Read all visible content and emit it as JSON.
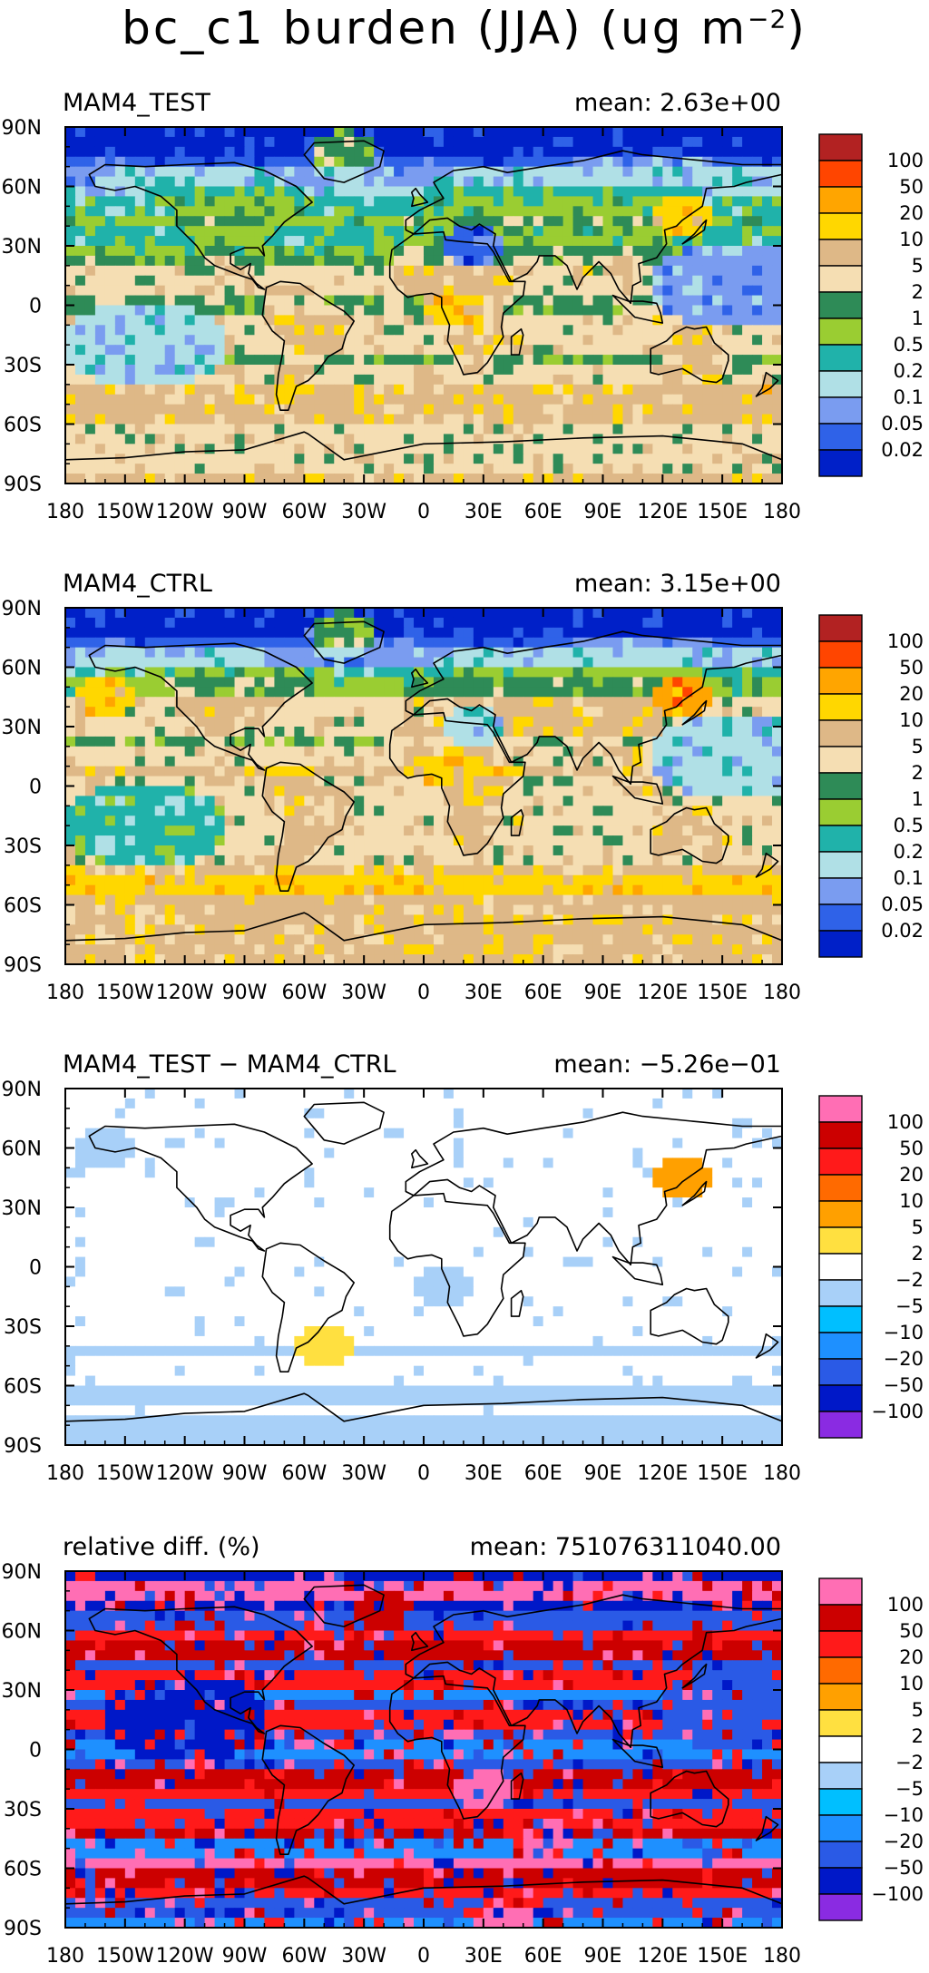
{
  "title": {
    "main": "bc_c1 burden (JJA) (ug m",
    "sup": "−2",
    "close": ")"
  },
  "colors": {
    "seq": [
      "#0020c8",
      "#2f62e8",
      "#7a9cf0",
      "#b0e0e6",
      "#20b2aa",
      "#9acd32",
      "#2e8b57",
      "#f5deb3",
      "#deb887",
      "#ffd700",
      "#ffa500",
      "#ff4500",
      "#b22222"
    ],
    "div": [
      "#8a2be2",
      "#0018c8",
      "#2a5ae6",
      "#1e90ff",
      "#00bfff",
      "#a8d0f8",
      "#ffffff",
      "#ffe040",
      "#ffa000",
      "#ff6a00",
      "#ff1a1a",
      "#cc0000",
      "#ff6eb4"
    ]
  },
  "chart_data": [
    {
      "type": "heatmap",
      "panel": "MAM4_TEST",
      "title": "MAM4_TEST",
      "mean_label": "mean: 2.63e+00",
      "xlabel": "",
      "ylabel": "",
      "xticks": [
        "180",
        "150W",
        "120W",
        "90W",
        "60W",
        "30W",
        "0",
        "30E",
        "60E",
        "90E",
        "120E",
        "150E",
        "180"
      ],
      "yticks": [
        "90N",
        "60N",
        "30N",
        "0",
        "30S",
        "60S",
        "90S"
      ],
      "xlim": [
        -180,
        180
      ],
      "ylim": [
        -90,
        90
      ],
      "colorbar_levels": [
        "0.02",
        "0.05",
        "0.1",
        "0.2",
        "0.5",
        "1",
        "2",
        "5",
        "10",
        "20",
        "50",
        "100"
      ],
      "palette": "seq",
      "band_profile": [
        0,
        0,
        1,
        2,
        3,
        4,
        5,
        4,
        5,
        6,
        7,
        7,
        6,
        7,
        7,
        7,
        6,
        7,
        8,
        8,
        8,
        7,
        7,
        7,
        8
      ],
      "land_shift": 1,
      "hotspots": [
        {
          "lon": 15,
          "lat": -2,
          "cls": 9,
          "label": "central Africa"
        },
        {
          "lon": 130,
          "lat": 45,
          "cls": 9,
          "label": "East Asia"
        },
        {
          "lon": 25,
          "lat": 30,
          "cls": 1,
          "label": "Mediterranean low"
        },
        {
          "lon": -40,
          "lat": 78,
          "cls": 6,
          "label": "Greenland"
        }
      ],
      "oceans": [
        {
          "lon": -140,
          "lat": -20,
          "cls": 3
        },
        {
          "lon": 155,
          "lat": 10,
          "cls": 2
        }
      ]
    },
    {
      "type": "heatmap",
      "panel": "MAM4_CTRL",
      "title": "MAM4_CTRL",
      "mean_label": "mean: 3.15e+00",
      "xlabel": "",
      "ylabel": "",
      "xticks": [
        "180",
        "150W",
        "120W",
        "90W",
        "60W",
        "30W",
        "0",
        "30E",
        "60E",
        "90E",
        "120E",
        "150E",
        "180"
      ],
      "yticks": [
        "90N",
        "60N",
        "30N",
        "0",
        "30S",
        "60S",
        "90S"
      ],
      "xlim": [
        -180,
        180
      ],
      "ylim": [
        -90,
        90
      ],
      "colorbar_levels": [
        "0.02",
        "0.05",
        "0.1",
        "0.2",
        "0.5",
        "1",
        "2",
        "5",
        "10",
        "20",
        "50",
        "100"
      ],
      "palette": "seq",
      "band_profile": [
        0,
        0,
        1,
        2,
        4,
        5,
        7,
        7,
        7,
        6,
        7,
        8,
        7,
        7,
        7,
        7,
        7,
        7,
        8,
        9,
        8,
        8,
        8,
        8,
        8
      ],
      "land_shift": 1,
      "hotspots": [
        {
          "lon": 15,
          "lat": 8,
          "cls": 9,
          "label": "central Africa"
        },
        {
          "lon": 130,
          "lat": 45,
          "cls": 10,
          "label": "East Asia"
        },
        {
          "lon": -160,
          "lat": 45,
          "cls": 9,
          "label": "North Pacific"
        },
        {
          "lon": 25,
          "lat": 30,
          "cls": 3,
          "label": "Mediterranean low"
        },
        {
          "lon": -40,
          "lat": 78,
          "cls": 6,
          "label": "Greenland"
        }
      ],
      "oceans": [
        {
          "lon": -140,
          "lat": -20,
          "cls": 4
        },
        {
          "lon": 155,
          "lat": 15,
          "cls": 3
        }
      ]
    },
    {
      "type": "heatmap",
      "panel": "MAM4_TEST - MAM4_CTRL",
      "title": "MAM4_TEST − MAM4_CTRL",
      "mean_label": "mean: −5.26e−01",
      "xlabel": "",
      "ylabel": "",
      "xticks": [
        "180",
        "150W",
        "120W",
        "90W",
        "60W",
        "30W",
        "0",
        "30E",
        "60E",
        "90E",
        "120E",
        "150E",
        "180"
      ],
      "yticks": [
        "90N",
        "60N",
        "30N",
        "0",
        "30S",
        "60S",
        "90S"
      ],
      "xlim": [
        -180,
        180
      ],
      "ylim": [
        -90,
        90
      ],
      "colorbar_levels": [
        "−100",
        "−50",
        "−20",
        "−10",
        "−5",
        "−2",
        "2",
        "5",
        "10",
        "20",
        "50",
        "100"
      ],
      "palette": "div",
      "band_profile": [
        6,
        6,
        6,
        6,
        6,
        6,
        6,
        6,
        6,
        6,
        6,
        6,
        6,
        6,
        6,
        6,
        6,
        6,
        5,
        6,
        6,
        5,
        6,
        5,
        5
      ],
      "land_shift": 0,
      "hotspots": [
        {
          "lon": -160,
          "lat": 60,
          "cls": 5,
          "label": "Arctic band"
        },
        {
          "lon": 10,
          "lat": -10,
          "cls": 5,
          "label": "Africa"
        },
        {
          "lon": 130,
          "lat": 45,
          "cls": 8,
          "label": "East Asia"
        },
        {
          "lon": -50,
          "lat": -40,
          "cls": 7,
          "label": "South America"
        }
      ],
      "oceans": []
    },
    {
      "type": "heatmap",
      "panel": "relative diff. (%)",
      "title": "relative diff. (%)",
      "mean_label": "mean: 751076311040.00",
      "xlabel": "",
      "ylabel": "",
      "xticks": [
        "180",
        "150W",
        "120W",
        "90W",
        "60W",
        "30W",
        "0",
        "30E",
        "60E",
        "90E",
        "120E",
        "150E",
        "180"
      ],
      "yticks": [
        "90N",
        "60N",
        "30N",
        "0",
        "30S",
        "60S",
        "90S"
      ],
      "xlim": [
        -180,
        180
      ],
      "ylim": [
        -90,
        90
      ],
      "colorbar_levels": [
        "−100",
        "−50",
        "−20",
        "−10",
        "−5",
        "−2",
        "2",
        "5",
        "10",
        "20",
        "50",
        "100"
      ],
      "palette": "div",
      "band_profile": [
        1,
        12,
        1,
        2,
        10,
        11,
        2,
        10,
        3,
        2,
        10,
        2,
        3,
        2,
        11,
        10,
        2,
        10,
        11,
        3,
        12,
        11,
        10,
        2,
        3
      ],
      "land_shift": 0,
      "hotspots": [
        {
          "lon": 60,
          "lat": -45,
          "cls": 12,
          "label": "Southern Ocean"
        },
        {
          "lon": 30,
          "lat": -20,
          "cls": 12,
          "label": "southern Africa"
        },
        {
          "lon": 40,
          "lat": -85,
          "cls": 12,
          "label": "Antarctica"
        },
        {
          "lon": -20,
          "lat": 70,
          "cls": 11,
          "label": "North Atlantic"
        }
      ],
      "oceans": [
        {
          "lon": -120,
          "lat": 15,
          "cls": 1
        },
        {
          "lon": 160,
          "lat": 20,
          "cls": 2
        }
      ]
    }
  ]
}
